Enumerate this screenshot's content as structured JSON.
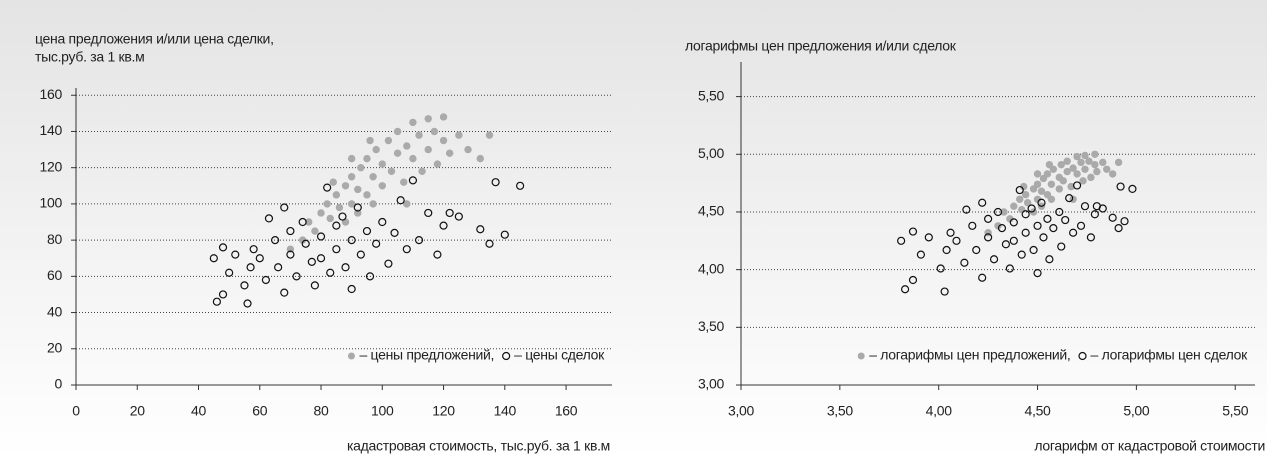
{
  "chart_data": [
    {
      "type": "scatter",
      "ylabel": [
        "цена предложения и/или цена сделки,",
        "тыс.руб. за 1 кв.м"
      ],
      "xlabel": "кадастровая стоимость, тыс.руб. за 1 кв.м",
      "xlim": [
        0,
        175
      ],
      "xticks": [
        0,
        20,
        40,
        60,
        80,
        100,
        120,
        140,
        160
      ],
      "ylim": [
        0,
        164
      ],
      "yticks": [
        0,
        20,
        40,
        60,
        80,
        100,
        120,
        140,
        160
      ],
      "grid": true,
      "legend": "lower right",
      "series": [
        {
          "name": "– цены предложений,",
          "color": "#aaaaaa",
          "marker": "filled",
          "x": [
            70,
            74,
            76,
            78,
            80,
            82,
            83,
            85,
            86,
            88,
            90,
            90,
            92,
            93,
            95,
            95,
            97,
            98,
            100,
            100,
            102,
            103,
            105,
            105,
            107,
            108,
            110,
            110,
            112,
            113,
            115,
            115,
            117,
            118,
            120,
            120,
            122,
            125,
            128,
            132,
            135,
            88,
            92,
            97,
            84,
            90,
            96,
            108
          ],
          "y": [
            75,
            80,
            90,
            85,
            95,
            100,
            92,
            105,
            98,
            110,
            100,
            115,
            108,
            120,
            105,
            125,
            115,
            130,
            110,
            122,
            135,
            118,
            128,
            140,
            112,
            132,
            125,
            145,
            138,
            118,
            130,
            147,
            140,
            122,
            135,
            148,
            128,
            138,
            130,
            125,
            138,
            90,
            95,
            100,
            112,
            125,
            135,
            100
          ]
        },
        {
          "name": "– цены сделок",
          "color": "#111111",
          "marker": "open",
          "x": [
            45,
            46,
            48,
            48,
            50,
            52,
            55,
            56,
            57,
            58,
            60,
            62,
            63,
            65,
            66,
            68,
            68,
            70,
            70,
            72,
            74,
            75,
            77,
            78,
            80,
            80,
            82,
            83,
            85,
            85,
            87,
            88,
            90,
            90,
            92,
            93,
            95,
            96,
            98,
            100,
            102,
            104,
            106,
            108,
            110,
            112,
            115,
            118,
            120,
            122,
            125,
            132,
            135,
            137,
            140,
            145
          ],
          "y": [
            70,
            46,
            50,
            76,
            62,
            72,
            55,
            45,
            65,
            75,
            70,
            58,
            92,
            80,
            65,
            98,
            51,
            85,
            72,
            60,
            90,
            78,
            68,
            55,
            82,
            70,
            109,
            62,
            88,
            75,
            93,
            65,
            80,
            53,
            98,
            72,
            85,
            60,
            78,
            90,
            67,
            84,
            102,
            75,
            113,
            80,
            95,
            72,
            88,
            95,
            93,
            86,
            78,
            112,
            83,
            110
          ]
        }
      ]
    },
    {
      "type": "scatter",
      "ylabel": [
        "логарифмы цен предложения и/или сделок"
      ],
      "xlabel": "логарифм от кадастровой стоимости",
      "xlim": [
        3,
        5.6
      ],
      "xticks": [
        {
          "value": 3,
          "label": "3,00"
        },
        {
          "value": 3.5,
          "label": "3,50"
        },
        {
          "value": 4,
          "label": "4,00"
        },
        {
          "value": 4.5,
          "label": "4,50"
        },
        {
          "value": 5,
          "label": "5,00"
        },
        {
          "value": 5.5,
          "label": "5,50"
        }
      ],
      "ylim": [
        3,
        5.8
      ],
      "yticks": [
        {
          "value": 3,
          "label": "3,00"
        },
        {
          "value": 3.5,
          "label": "3,50"
        },
        {
          "value": 4,
          "label": "4,00"
        },
        {
          "value": 4.5,
          "label": "4,50"
        },
        {
          "value": 5,
          "label": "5,00"
        },
        {
          "value": 5.5,
          "label": "5,50"
        }
      ],
      "grid": true,
      "legend": "lower right",
      "series": [
        {
          "name": "– логарифмы цен предложений,",
          "color": "#aaaaaa",
          "marker": "filled",
          "x": [
            4.25,
            4.3,
            4.33,
            4.36,
            4.38,
            4.41,
            4.42,
            4.44,
            4.45,
            4.48,
            4.5,
            4.5,
            4.52,
            4.53,
            4.55,
            4.55,
            4.57,
            4.58,
            4.61,
            4.61,
            4.62,
            4.63,
            4.65,
            4.65,
            4.67,
            4.68,
            4.7,
            4.7,
            4.72,
            4.73,
            4.74,
            4.74,
            4.76,
            4.77,
            4.79,
            4.79,
            4.8,
            4.83,
            4.85,
            4.88,
            4.91,
            4.48,
            4.52,
            4.57,
            4.43,
            4.5,
            4.56,
            4.68
          ],
          "y": [
            4.32,
            4.38,
            4.5,
            4.44,
            4.55,
            4.61,
            4.52,
            4.65,
            4.58,
            4.7,
            4.61,
            4.74,
            4.68,
            4.79,
            4.65,
            4.83,
            4.74,
            4.87,
            4.7,
            4.8,
            4.91,
            4.77,
            4.85,
            4.94,
            4.72,
            4.88,
            4.83,
            4.98,
            4.93,
            4.77,
            4.87,
            4.99,
            4.94,
            4.8,
            4.91,
            5.0,
            4.85,
            4.93,
            4.87,
            4.83,
            4.93,
            4.5,
            4.55,
            4.61,
            4.72,
            4.83,
            4.91,
            4.61
          ]
        },
        {
          "name": "– логарифмы цен сделок",
          "color": "#111111",
          "marker": "open",
          "x": [
            3.81,
            3.83,
            3.87,
            3.87,
            3.91,
            3.95,
            4.01,
            4.03,
            4.04,
            4.06,
            4.09,
            4.13,
            4.14,
            4.17,
            4.19,
            4.22,
            4.22,
            4.25,
            4.25,
            4.28,
            4.3,
            4.32,
            4.34,
            4.36,
            4.38,
            4.38,
            4.41,
            4.42,
            4.44,
            4.44,
            4.47,
            4.48,
            4.5,
            4.5,
            4.52,
            4.53,
            4.55,
            4.56,
            4.58,
            4.61,
            4.62,
            4.64,
            4.66,
            4.68,
            4.7,
            4.72,
            4.74,
            4.77,
            4.79,
            4.8,
            4.83,
            4.88,
            4.91,
            4.92,
            4.94,
            4.98
          ],
          "y": [
            4.25,
            3.83,
            3.91,
            4.33,
            4.13,
            4.28,
            4.01,
            3.81,
            4.17,
            4.32,
            4.25,
            4.06,
            4.52,
            4.38,
            4.17,
            4.58,
            3.93,
            4.44,
            4.28,
            4.09,
            4.5,
            4.36,
            4.22,
            4.01,
            4.41,
            4.25,
            4.69,
            4.13,
            4.48,
            4.32,
            4.53,
            4.17,
            4.38,
            3.97,
            4.58,
            4.28,
            4.44,
            4.09,
            4.36,
            4.5,
            4.2,
            4.43,
            4.62,
            4.32,
            4.73,
            4.38,
            4.55,
            4.28,
            4.48,
            4.55,
            4.53,
            4.45,
            4.36,
            4.72,
            4.42,
            4.7
          ]
        }
      ]
    }
  ]
}
